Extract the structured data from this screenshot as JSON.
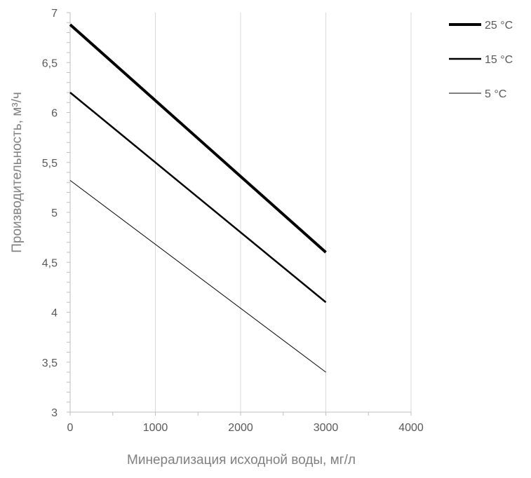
{
  "chart_data": {
    "type": "line",
    "title": "",
    "xlabel": "Минерализация исходной воды, мг/л",
    "ylabel": "Производительность, м³/ч",
    "xlim": [
      0,
      4000
    ],
    "ylim": [
      3,
      7
    ],
    "x_ticks": [
      0,
      1000,
      2000,
      3000,
      4000
    ],
    "x_tick_labels": [
      "0",
      "1000",
      "2000",
      "3000",
      "4000"
    ],
    "y_ticks": [
      3,
      3.5,
      4,
      4.5,
      5,
      5.5,
      6,
      6.5,
      7
    ],
    "y_tick_labels": [
      "3",
      "3,5",
      "4",
      "4,5",
      "5",
      "5,5",
      "6",
      "6,5",
      "7"
    ],
    "grid": "vertical",
    "legend_position": "top-right",
    "series": [
      {
        "name": "25 °C",
        "x": [
          0,
          3000
        ],
        "y": [
          6.88,
          4.6
        ],
        "color": "#000000"
      },
      {
        "name": "15 °C",
        "x": [
          0,
          3000
        ],
        "y": [
          6.2,
          4.1
        ],
        "color": "#000000"
      },
      {
        "name": "5 °C",
        "x": [
          0,
          3000
        ],
        "y": [
          5.32,
          3.4
        ],
        "color": "#000000"
      }
    ]
  }
}
